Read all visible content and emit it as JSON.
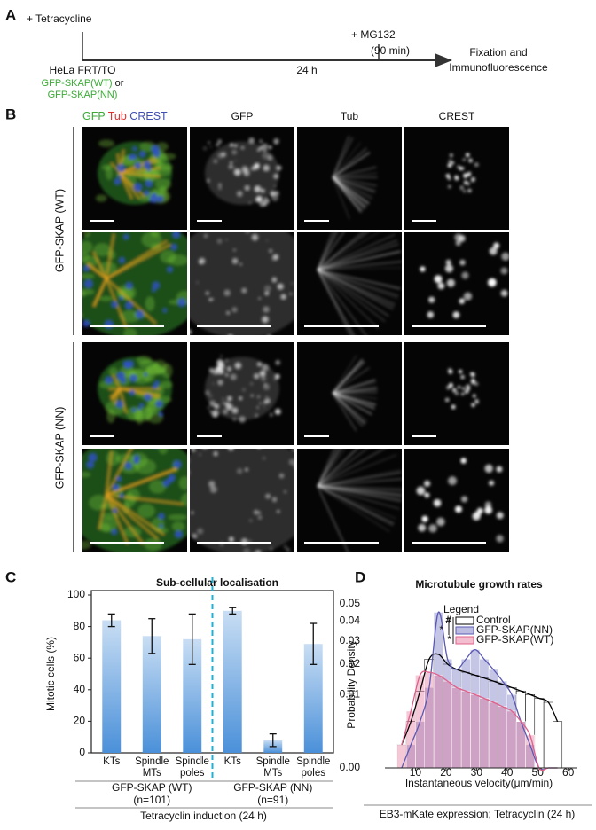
{
  "panel_a": {
    "letter": "A",
    "start": "+ Tetracycline",
    "cell_line": "HeLa FRT/TO",
    "construct_1": "GFP-SKAP(WT)",
    "or": "or",
    "construct_2": "GFP-SKAP(NN)",
    "drug": "+ MG132",
    "drug_time": "(90 min)",
    "duration": "24 h",
    "endpoint": [
      "Fixation and",
      "Immunofluorescence"
    ]
  },
  "panel_b": {
    "letter": "B",
    "merge_labels": [
      "GFP",
      "Tub",
      "CREST"
    ],
    "column_headers": [
      "GFP",
      "Tub",
      "CREST"
    ],
    "row_labels": [
      "GFP-SKAP (WT)",
      "GFP-SKAP (NN)"
    ]
  },
  "chart_data": [
    {
      "type": "bar",
      "panel_label": "C",
      "title": "Sub-cellular localisation",
      "ylabel": "Mitotic cells (%)",
      "categories": [
        "KTs",
        "Spindle MTs",
        "Spindle poles",
        "KTs",
        "Spindle MTs",
        "Spindle poles"
      ],
      "values": [
        84,
        74,
        72,
        90,
        8,
        69
      ],
      "errors": [
        4,
        11,
        16,
        2,
        4,
        13
      ],
      "color": "#4a90d9",
      "ylim": [
        0,
        100
      ],
      "yticks": [
        0,
        20,
        40,
        60,
        80,
        100
      ],
      "groups": [
        {
          "label": "GFP-SKAP (WT)",
          "n": "(n=101)"
        },
        {
          "label": "GFP-SKAP (NN)",
          "n": "(n=91)"
        }
      ],
      "group_caption": "Tetracyclin induction (24 h)"
    },
    {
      "type": "histogram",
      "panel_label": "D",
      "title": "Microtubule growth rates",
      "ylabel": "Probability Density",
      "xlabel": "Instantaneous velocity(μm/min)",
      "bins": [
        4,
        7,
        10,
        13,
        16,
        19,
        22,
        25,
        28,
        31,
        34,
        37,
        40,
        43,
        46,
        49,
        52,
        55,
        58
      ],
      "series": [
        {
          "name": "Control",
          "color": "#000000",
          "values": [
            0.001,
            0.004,
            0.011,
            0.022,
            0.024,
            0.02,
            0.018,
            0.017,
            0.016,
            0.015,
            0.014,
            0.013,
            0.012,
            0.011,
            0.01,
            0.009,
            0.008,
            0.004
          ]
        },
        {
          "name": "GFP-SKAP(NN)",
          "color": "#5a5ab4",
          "values": [
            0,
            0.001,
            0.004,
            0.012,
            0.045,
            0.022,
            0.018,
            0.022,
            0.026,
            0.022,
            0.018,
            0.014,
            0.01,
            0.004,
            0.001,
            0,
            0,
            0
          ]
        },
        {
          "name": "GFP-SKAP(WT)",
          "color": "#e0608a",
          "values": [
            0.001,
            0.006,
            0.016,
            0.017,
            0.016,
            0.014,
            0.012,
            0.011,
            0.01,
            0.009,
            0.008,
            0.007,
            0.006,
            0.004,
            0.002,
            0,
            0,
            0
          ]
        }
      ],
      "xlim": [
        0,
        63
      ],
      "xticks": [
        10,
        20,
        30,
        40,
        50,
        60
      ],
      "ylim": [
        0,
        0.05
      ],
      "yscale": "sqrt",
      "yticks": [
        {
          "value": 0,
          "label": "0.00"
        },
        0.01,
        0.02,
        0.03,
        0.04,
        0.05
      ],
      "legend_title": "Legend",
      "annotations": [
        "#",
        "*",
        "*"
      ],
      "footer": "EB3-mKate expression; Tetracyclin (24 h)"
    }
  ]
}
